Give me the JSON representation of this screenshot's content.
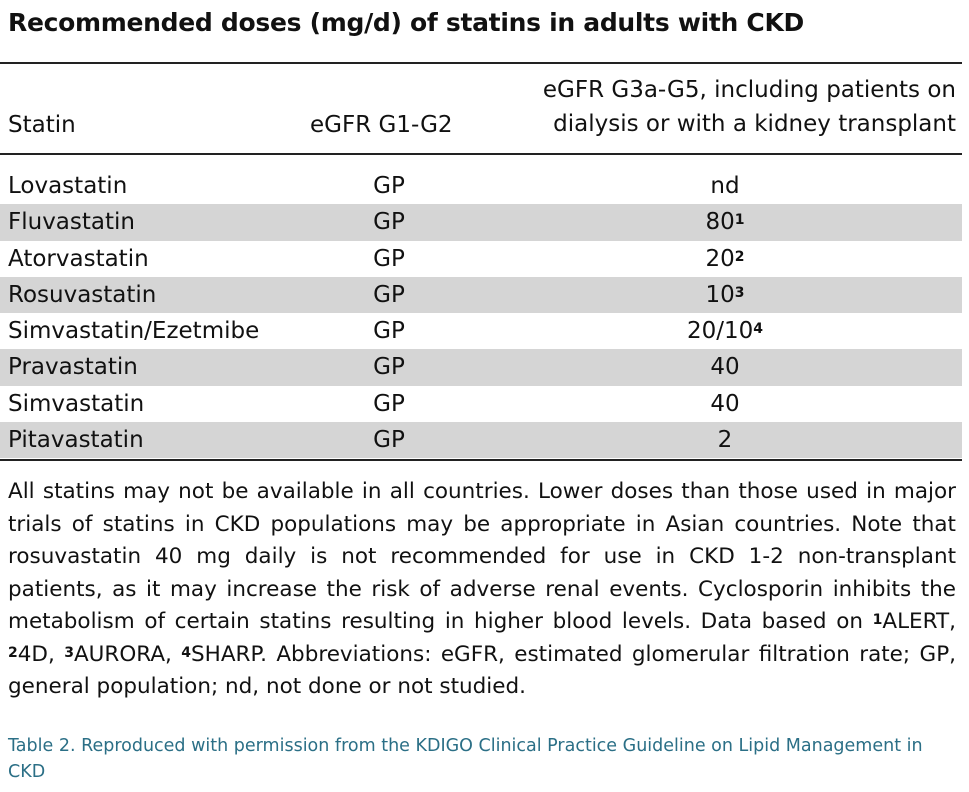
{
  "title": "Recommended doses (mg/d) of statins in adults with CKD",
  "headers": {
    "statin": "Statin",
    "g12": "eGFR G1-G2",
    "g35_line1": "eGFR G3a-G5, including patients on",
    "g35_line2": "dialysis or with a kidney transplant"
  },
  "rows": [
    {
      "name": "Lovastatin",
      "g12": "GP",
      "g35": "nd",
      "sup": ""
    },
    {
      "name": "Fluvastatin",
      "g12": "GP",
      "g35": "80",
      "sup": "1"
    },
    {
      "name": "Atorvastatin",
      "g12": "GP",
      "g35": "20",
      "sup": "2"
    },
    {
      "name": "Rosuvastatin",
      "g12": "GP",
      "g35": "10",
      "sup": "3"
    },
    {
      "name": "Simvastatin/Ezetmibe",
      "g12": "GP",
      "g35": "20/10",
      "sup": "4"
    },
    {
      "name": "Pravastatin",
      "g12": "GP",
      "g35": "40",
      "sup": ""
    },
    {
      "name": "Simvastatin",
      "g12": "GP",
      "g35": "40",
      "sup": ""
    },
    {
      "name": "Pitavastatin",
      "g12": "GP",
      "g35": "2",
      "sup": ""
    }
  ],
  "footnote": {
    "text1": "All statins may not be available in all countries. Lower doses than those used in major trials of statins in CKD populations may be appropriate in Asian countries. Note that rosuvastatin 40 mg daily is not recommended for use in CKD 1-2 non-transplant patients, as it may increase the risk of adverse renal events. Cyclosporin inhibits the metabolism of certain statins resulting in higher blood levels. Data based on ",
    "ref1_sup": "1",
    "ref1": "ALERT, ",
    "ref2_sup": "2",
    "ref2": "4D, ",
    "ref3_sup": "3",
    "ref3": "AURORA, ",
    "ref4_sup": "4",
    "ref4": "SHARP. Abbreviations: eGFR, estimated glomerular filtration rate; GP, general population; nd, not done or not studied."
  },
  "caption": "Table 2. Reproduced with permission from the KDIGO Clinical Practice Guideline on Lipid Management in CKD",
  "colors": {
    "shade": "#d5d5d5",
    "caption": "#2b6f86"
  }
}
